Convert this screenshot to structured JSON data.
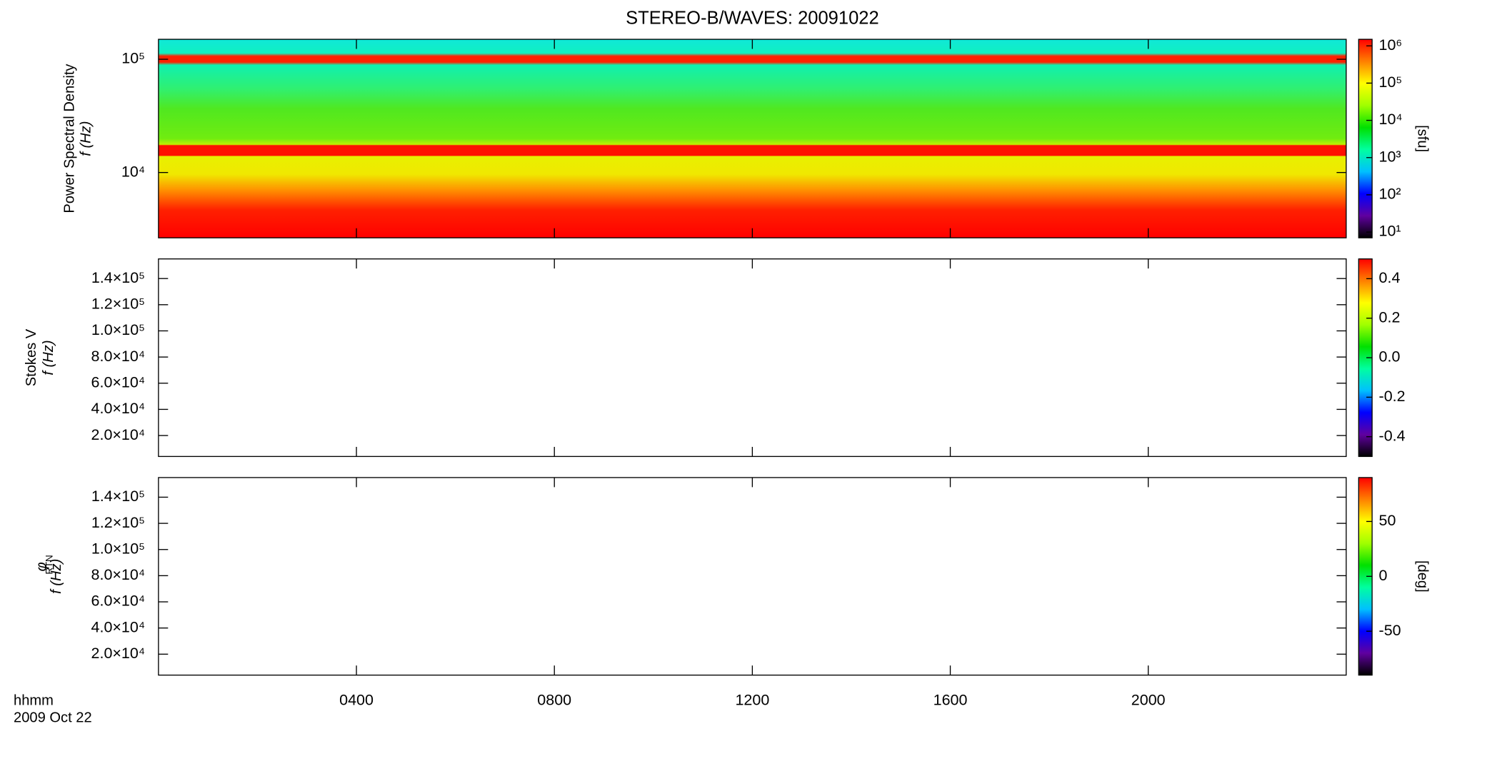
{
  "chart_data": {
    "type": "spectrogram",
    "title": "STEREO-B/WAVES: 20091022",
    "x_label": "hhmm",
    "x_date": "2009 Oct 22",
    "xlim": [
      0,
      24
    ],
    "xticks": [
      {
        "value": 4,
        "label": "0400"
      },
      {
        "value": 8,
        "label": "0800"
      },
      {
        "value": 12,
        "label": "1200"
      },
      {
        "value": 16,
        "label": "1600"
      },
      {
        "value": 20,
        "label": "2000"
      }
    ],
    "colormap": [
      "#000000",
      "#6000a0",
      "#0000ff",
      "#00c0ff",
      "#00ffa0",
      "#00e000",
      "#a0ff00",
      "#ffff00",
      "#ff8000",
      "#ff0000"
    ],
    "panels": [
      {
        "ylabel": "Power Spectral Density",
        "ylabel_unit": "f (Hz)",
        "ylog": true,
        "ylim": [
          2650,
          150000
        ],
        "yticks": [
          {
            "value": 10000,
            "label": "10⁴"
          },
          {
            "value": 100000,
            "label": "10⁵"
          }
        ],
        "clog": true,
        "clim": [
          7,
          1500000
        ],
        "cticks": [
          {
            "value": 10,
            "label": "10¹"
          },
          {
            "value": 100,
            "label": "10²"
          },
          {
            "value": 1000,
            "label": "10³"
          },
          {
            "value": 10000,
            "label": "10⁴"
          },
          {
            "value": 100000,
            "label": "10⁵"
          },
          {
            "value": 1000000,
            "label": "10⁶"
          }
        ],
        "clabel": "[sfu]"
      },
      {
        "ylabel": "Stokes V",
        "ylabel_unit": "f (Hz)",
        "ylog": false,
        "ylim": [
          4000,
          155000
        ],
        "yticks": [
          {
            "value": 20000,
            "label": "2.0×10⁴"
          },
          {
            "value": 40000,
            "label": "4.0×10⁴"
          },
          {
            "value": 60000,
            "label": "6.0×10⁴"
          },
          {
            "value": 80000,
            "label": "8.0×10⁴"
          },
          {
            "value": 100000,
            "label": "1.0×10⁵"
          },
          {
            "value": 120000,
            "label": "1.2×10⁵"
          },
          {
            "value": 140000,
            "label": "1.4×10⁵"
          }
        ],
        "clog": false,
        "clim": [
          -0.5,
          0.5
        ],
        "cticks": [
          -0.4,
          -0.2,
          {
            "value": 0,
            "label": "0.0"
          },
          0.2,
          0.4
        ]
      },
      {
        "ylabel": "φ",
        "ylabel_subscript": "RTN",
        "ylabel_unit": "f (Hz)",
        "ylog": false,
        "ylim": [
          4000,
          155000
        ],
        "yticks": [
          {
            "value": 20000,
            "label": "2.0×10⁴"
          },
          {
            "value": 40000,
            "label": "4.0×10⁴"
          },
          {
            "value": 60000,
            "label": "6.0×10⁴"
          },
          {
            "value": 80000,
            "label": "8.0×10⁴"
          },
          {
            "value": 100000,
            "label": "1.0×10⁵"
          },
          {
            "value": 120000,
            "label": "1.2×10⁵"
          },
          {
            "value": 140000,
            "label": "1.4×10⁵"
          }
        ],
        "clog": false,
        "clim": [
          -90,
          90
        ],
        "cticks": [
          -50,
          0,
          50
        ],
        "clabel": "[deg]"
      }
    ]
  }
}
